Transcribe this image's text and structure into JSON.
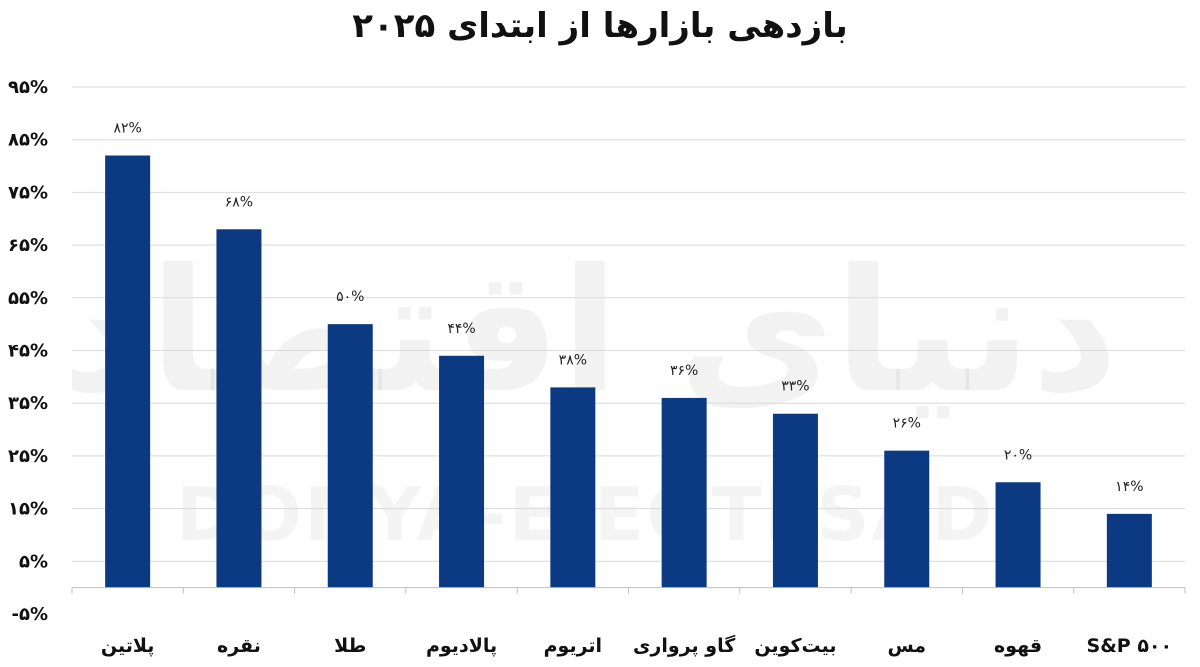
{
  "chart_data": {
    "type": "bar",
    "title": "بازدهی بازارها از ابتدای ۲۰۲۵",
    "categories": [
      "پلاتین",
      "نقره",
      "طلا",
      "پالادیوم",
      "اتریوم",
      "گاو پرواری",
      "بیت‌کوین",
      "مس",
      "قهوه",
      "S&P ۵۰۰"
    ],
    "values": [
      82,
      68,
      50,
      44,
      38,
      36,
      33,
      26,
      20,
      14
    ],
    "data_labels": [
      "۸۲%",
      "۶۸%",
      "۵۰%",
      "۴۴%",
      "۳۸%",
      "۳۶%",
      "۳۳%",
      "۲۶%",
      "۲۰%",
      "۱۴%"
    ],
    "y_ticks": [
      95,
      85,
      75,
      65,
      55,
      45,
      35,
      25,
      15,
      5,
      -5
    ],
    "y_tick_labels": [
      "۹۵%",
      "۸۵%",
      "۷۵%",
      "۶۵%",
      "۵۵%",
      "۴۵%",
      "۳۵%",
      "۲۵%",
      "۱۵%",
      "۵%",
      "-۵%"
    ],
    "ylim": [
      -5,
      95
    ],
    "grid": true,
    "legend": "none",
    "bar_color": "#0B3A82",
    "watermark": {
      "latin": "DONYA-E-EQTESAD",
      "persian": "دنیای اقتصاد"
    }
  }
}
